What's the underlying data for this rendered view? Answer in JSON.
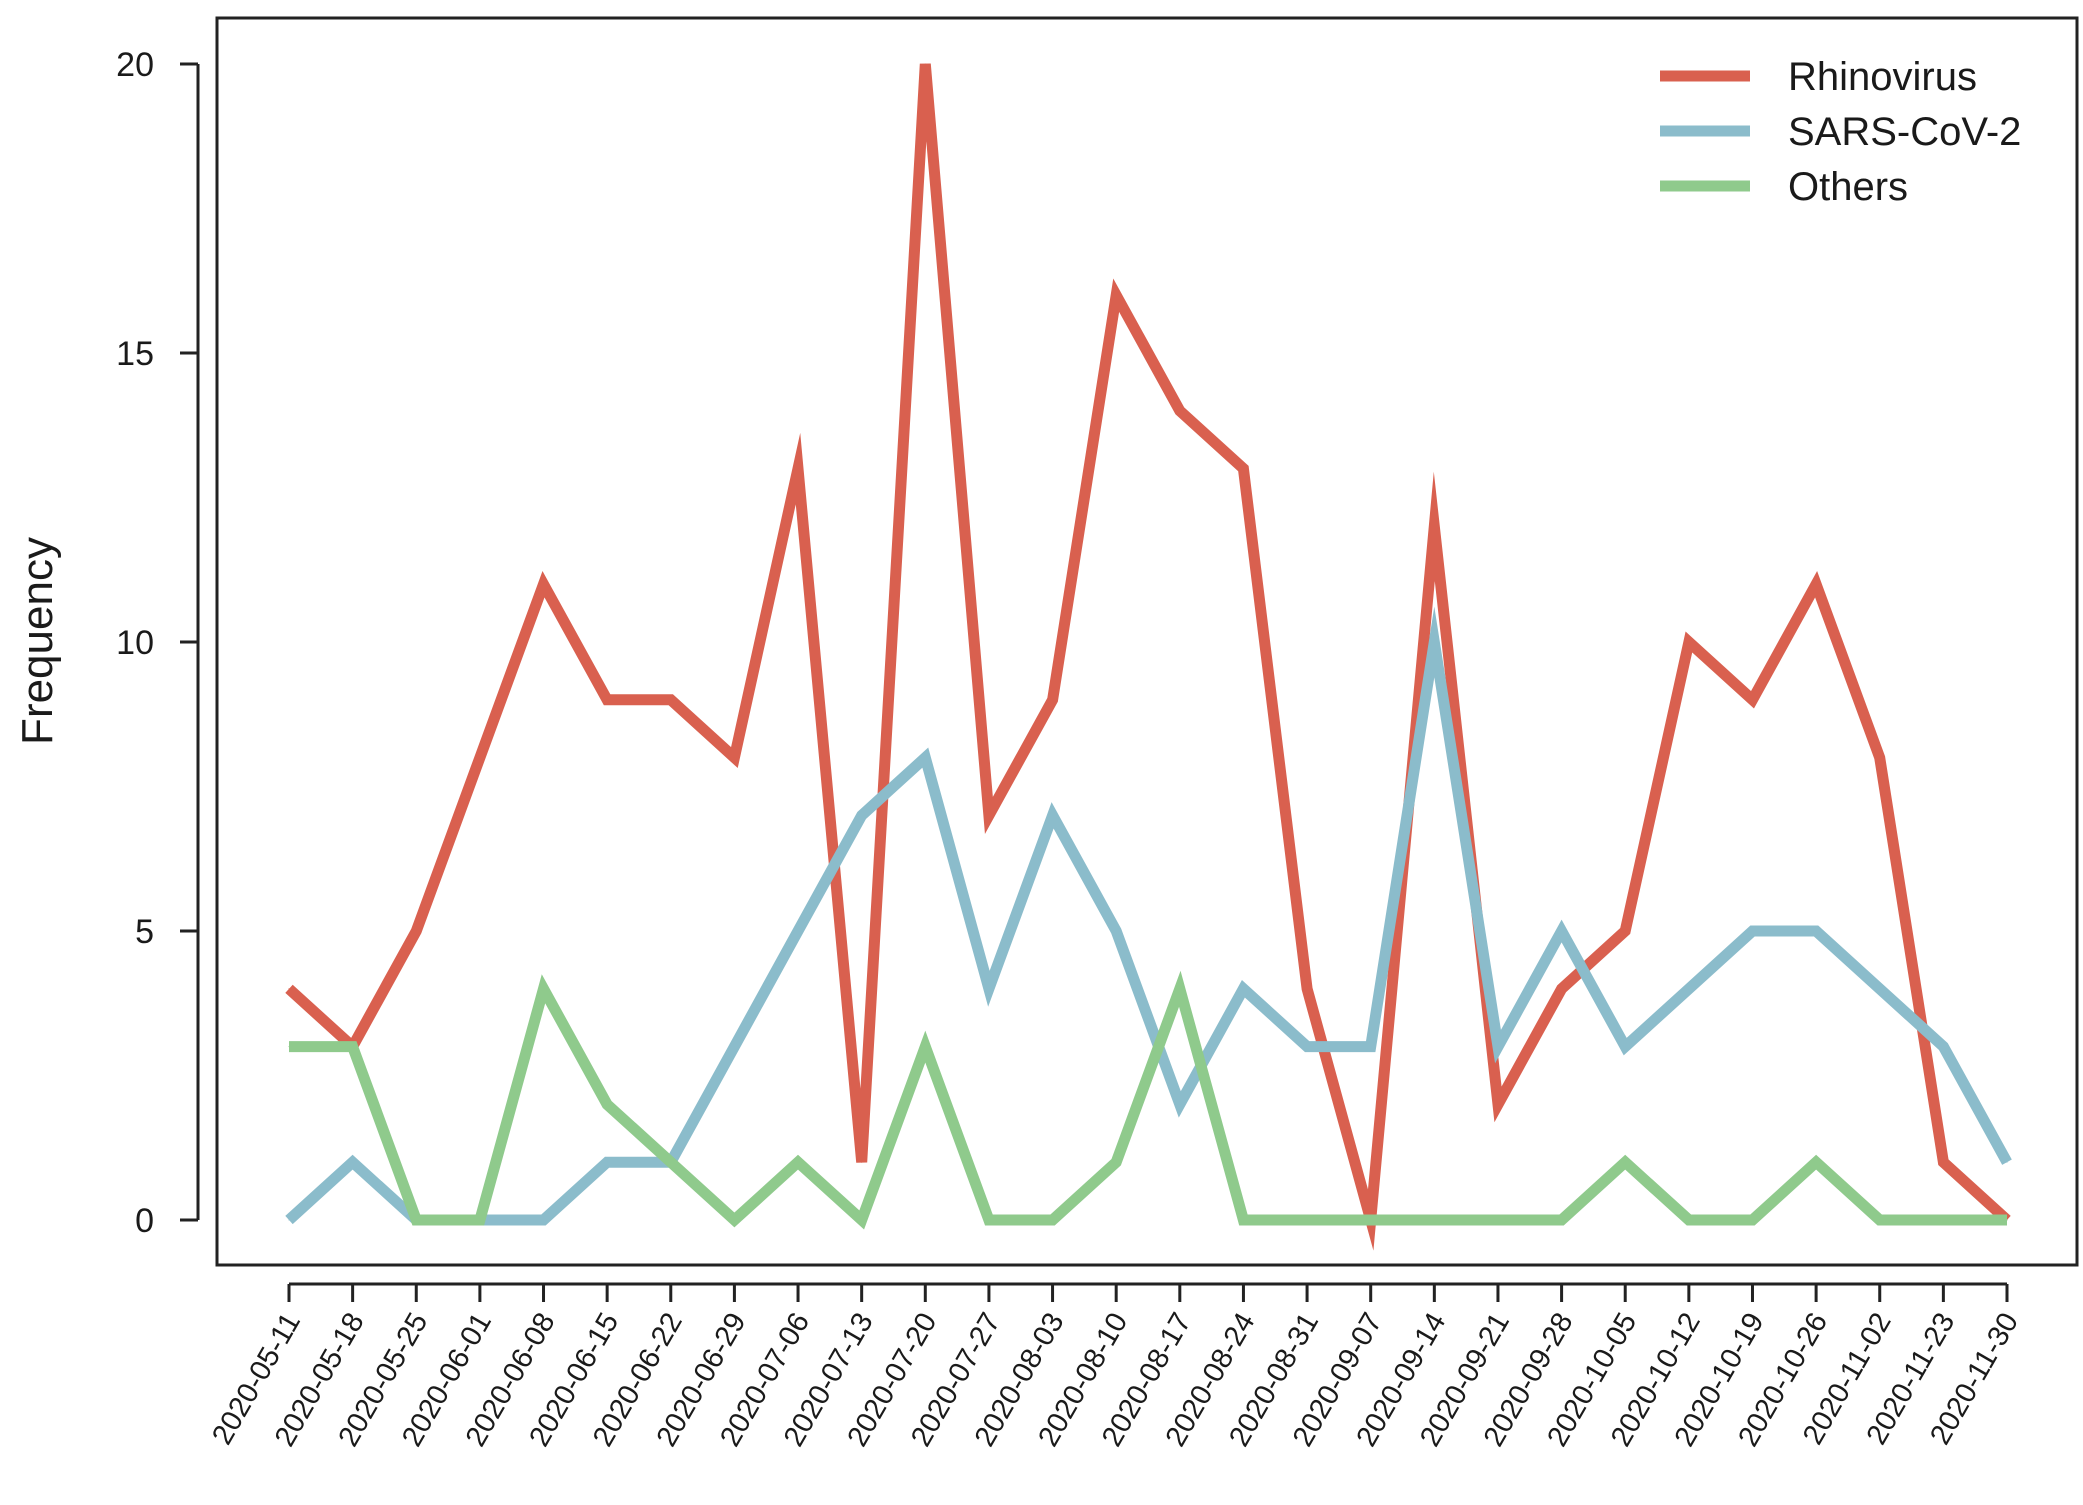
{
  "chart_data": {
    "type": "line",
    "ylabel": "Frequency",
    "xlabel": "",
    "ylim": [
      0,
      20
    ],
    "yticks": [
      0,
      5,
      10,
      15,
      20
    ],
    "grid": false,
    "legend_position": "top-right",
    "categories": [
      "2020-05-11",
      "2020-05-18",
      "2020-05-25",
      "2020-06-01",
      "2020-06-08",
      "2020-06-15",
      "2020-06-22",
      "2020-06-29",
      "2020-07-06",
      "2020-07-13",
      "2020-07-20",
      "2020-07-27",
      "2020-08-03",
      "2020-08-10",
      "2020-08-17",
      "2020-08-24",
      "2020-08-31",
      "2020-09-07",
      "2020-09-14",
      "2020-09-21",
      "2020-09-28",
      "2020-10-05",
      "2020-10-12",
      "2020-10-19",
      "2020-10-26",
      "2020-11-02",
      "2020-11-23",
      "2020-11-30"
    ],
    "series": [
      {
        "name": "Rhinovirus",
        "color": "#d9604f",
        "values": [
          4,
          3,
          5,
          8,
          11,
          9,
          9,
          8,
          13,
          1,
          20,
          7,
          9,
          16,
          14,
          13,
          4,
          0,
          12,
          2,
          4,
          5,
          10,
          9,
          11,
          8,
          1,
          0
        ]
      },
      {
        "name": "SARS-CoV-2",
        "color": "#8bbccb",
        "values": [
          0,
          1,
          0,
          0,
          0,
          1,
          1,
          3,
          5,
          7,
          8,
          4,
          7,
          5,
          2,
          4,
          3,
          3,
          10,
          3,
          5,
          3,
          4,
          5,
          5,
          4,
          3,
          1
        ]
      },
      {
        "name": "Others",
        "color": "#8fca8c",
        "values": [
          3,
          3,
          0,
          0,
          4,
          2,
          1,
          0,
          1,
          0,
          3,
          0,
          0,
          1,
          4,
          0,
          0,
          0,
          0,
          0,
          0,
          1,
          0,
          0,
          1,
          0,
          0,
          0
        ]
      }
    ]
  }
}
